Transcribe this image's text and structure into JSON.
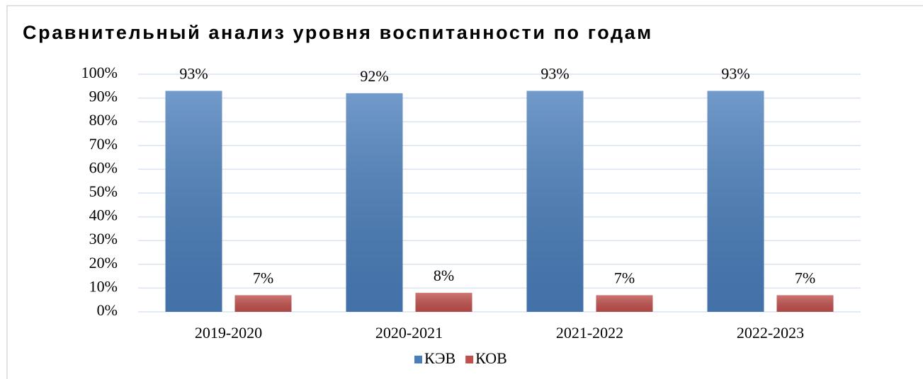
{
  "chart_data": {
    "type": "bar",
    "title": "Сравнительный анализ уровня воспитанности по годам",
    "categories": [
      "2019-2020",
      "2020-2021",
      "2021-2022",
      "2022-2023"
    ],
    "series": [
      {
        "name": "КЭВ",
        "color": "#4a7ebb",
        "values": [
          93,
          92,
          93,
          93
        ],
        "value_labels": [
          "93%",
          "92%",
          "93%",
          "93%"
        ]
      },
      {
        "name": "КОВ",
        "color": "#c0504d",
        "values": [
          7,
          8,
          7,
          7
        ],
        "value_labels": [
          "7%",
          "8%",
          "7%",
          "7%"
        ]
      }
    ],
    "ylim": [
      0,
      100
    ],
    "yticks": [
      {
        "value": 0,
        "label": "0%"
      },
      {
        "value": 10,
        "label": "10%"
      },
      {
        "value": 20,
        "label": "20%"
      },
      {
        "value": 30,
        "label": "30%"
      },
      {
        "value": 40,
        "label": "40%"
      },
      {
        "value": 50,
        "label": "50%"
      },
      {
        "value": 60,
        "label": "60%"
      },
      {
        "value": 70,
        "label": "70%"
      },
      {
        "value": 80,
        "label": "80%"
      },
      {
        "value": 90,
        "label": "90%"
      },
      {
        "value": 100,
        "label": "100%"
      }
    ],
    "grid": true,
    "legend": "bottom"
  }
}
